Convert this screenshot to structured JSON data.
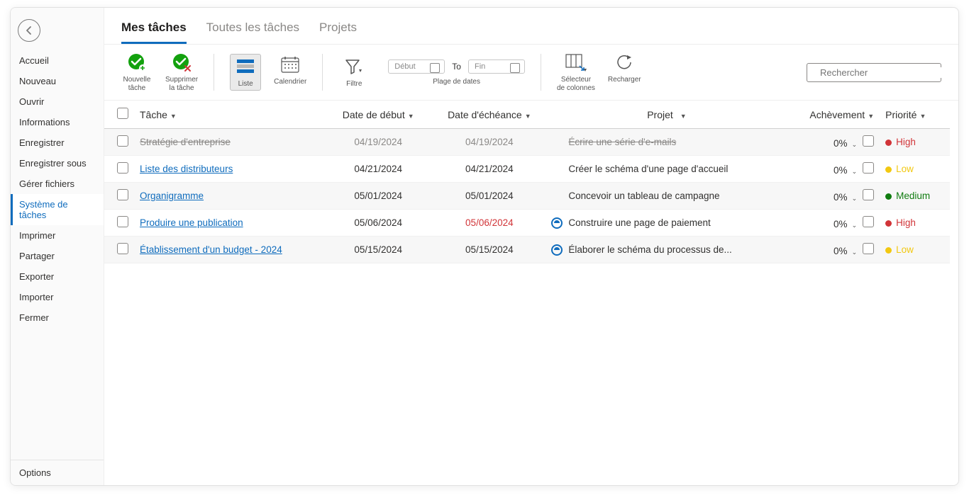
{
  "colors": {
    "accent": "#0f6cbd",
    "text": "#323130",
    "muted": "#8a8886",
    "danger": "#d13438",
    "priority_high": "#d13438",
    "priority_low": "#f2c811",
    "priority_medium": "#107c10",
    "toolbar_green": "#13a10e"
  },
  "sidebar": {
    "items": [
      {
        "label": "Accueil"
      },
      {
        "label": "Nouveau"
      },
      {
        "label": "Ouvrir"
      },
      {
        "label": "Informations"
      },
      {
        "label": "Enregistrer"
      },
      {
        "label": "Enregistrer sous"
      },
      {
        "label": "Gérer fichiers"
      },
      {
        "label": "Système de tâches"
      },
      {
        "label": "Imprimer"
      },
      {
        "label": "Partager"
      },
      {
        "label": "Exporter"
      },
      {
        "label": "Importer"
      },
      {
        "label": "Fermer"
      }
    ],
    "active_index": 7,
    "options_label": "Options"
  },
  "tabs": {
    "items": [
      "Mes tâches",
      "Toutes les tâches",
      "Projets"
    ],
    "active_index": 0
  },
  "toolbar": {
    "new_task": "Nouvelle\ntâche",
    "delete_task": "Supprimer\nla tâche",
    "list": "Liste",
    "calendar": "Calendrier",
    "filter": "Filtre",
    "date_range_label": "Plage de dates",
    "start_placeholder": "Début",
    "to_label": "To",
    "end_placeholder": "Fin",
    "column_selector": "Sélecteur\nde colonnes",
    "reload": "Recharger"
  },
  "search": {
    "placeholder": "Rechercher"
  },
  "table": {
    "columns": {
      "task": "Tâche",
      "start": "Date de début",
      "due": "Date d'échéance",
      "project": "Projet",
      "completion": "Achèvement",
      "priority": "Priorité"
    },
    "rows": [
      {
        "task": "Stratégie d'entreprise",
        "done": true,
        "start": "04/19/2024",
        "due": "04/19/2024",
        "overdue": false,
        "project": "Écrire une série d'e-mails",
        "project_icon": false,
        "project_muted": true,
        "completion": "0%",
        "priority": "High",
        "priority_key": "high"
      },
      {
        "task": "Liste des distributeurs",
        "done": false,
        "start": "04/21/2024",
        "due": "04/21/2024",
        "overdue": false,
        "project": "Créer le schéma d'une page d'accueil",
        "project_icon": false,
        "project_muted": false,
        "completion": "0%",
        "priority": "Low",
        "priority_key": "low"
      },
      {
        "task": "Organigramme",
        "done": false,
        "start": "05/01/2024",
        "due": "05/01/2024",
        "overdue": false,
        "project": "Concevoir un tableau de campagne",
        "project_icon": false,
        "project_muted": false,
        "completion": "0%",
        "priority": "Medium",
        "priority_key": "medium"
      },
      {
        "task": "Produire une publication",
        "done": false,
        "start": "05/06/2024",
        "due": "05/06/2024",
        "overdue": true,
        "project": "Construire une page de paiement",
        "project_icon": true,
        "project_muted": false,
        "completion": "0%",
        "priority": "High",
        "priority_key": "high"
      },
      {
        "task": "Établissement d'un budget - 2024",
        "done": false,
        "start": "05/15/2024",
        "due": "05/15/2024",
        "overdue": false,
        "project": "Élaborer le schéma du processus de...",
        "project_icon": true,
        "project_muted": false,
        "completion": "0%",
        "priority": "Low",
        "priority_key": "low"
      }
    ]
  }
}
